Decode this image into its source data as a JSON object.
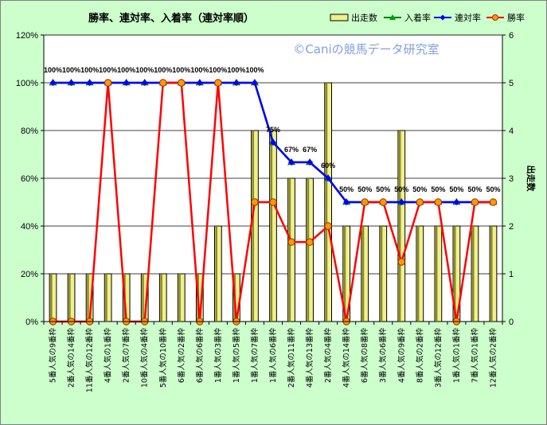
{
  "chart_data": {
    "type": "bar",
    "title": "勝率、連対率、入着率（連対率順）",
    "watermark": "©Caniの競馬データ研究室",
    "categories": [
      "5番人気の9番枠",
      "2番人気の14番枠",
      "11番人気の12番枠",
      "4番人気の1番枠",
      "2番人気の7番枠",
      "10番人気の4番枠",
      "5番人気の10番枠",
      "6番人気の2番枠",
      "6番人気の6番枠",
      "1番人気の3番枠",
      "1番人気の5番枠",
      "1番人気の7番枠",
      "1番人気の6番枠",
      "2番人気の11番枠",
      "4番人気の13番枠",
      "2番人気の4番枠",
      "4番人気の14番枠",
      "6番人気の8番枠",
      "3番人気の6番枠",
      "4番人気の9番枠",
      "8番人気の2番枠",
      "3番人気の12番枠",
      "1番人気の1番枠",
      "7番人気の1番枠",
      "12番人気の2番枠"
    ],
    "y_left": {
      "ticks": [
        "0%",
        "20%",
        "40%",
        "60%",
        "80%",
        "100%",
        "120%"
      ],
      "min": 0,
      "max": 1.2
    },
    "y_right": {
      "ticks": [
        "0",
        "1",
        "2",
        "3",
        "4",
        "5",
        "6"
      ],
      "min": 0,
      "max": 6,
      "label": "出走数"
    },
    "legend": {
      "placement": "top-right"
    },
    "grid": true,
    "series": [
      {
        "name": "出走数",
        "kind": "bar",
        "axis": "right",
        "color": "#f0f08c",
        "values": [
          1,
          1,
          1,
          1,
          1,
          1,
          1,
          1,
          1,
          2,
          1,
          4,
          4,
          3,
          3,
          5,
          2,
          2,
          2,
          4,
          2,
          2,
          2,
          2,
          2
        ]
      },
      {
        "name": "入着率",
        "kind": "line",
        "axis": "left",
        "color": "#008000",
        "values": [
          1,
          1,
          1,
          1,
          1,
          1,
          1,
          1,
          1,
          1,
          1,
          1,
          0.75,
          0.667,
          0.667,
          0.6,
          0.5,
          0.5,
          0.5,
          0.5,
          0.5,
          0.5,
          0.5,
          0.5,
          0.5
        ]
      },
      {
        "name": "連対率",
        "kind": "line",
        "axis": "left",
        "color": "#0000ff",
        "values": [
          1,
          1,
          1,
          1,
          1,
          1,
          1,
          1,
          1,
          1,
          1,
          1,
          0.75,
          0.667,
          0.667,
          0.6,
          0.5,
          0.5,
          0.5,
          0.5,
          0.5,
          0.5,
          0.5,
          0.5,
          0.5
        ]
      },
      {
        "name": "勝率",
        "kind": "line",
        "axis": "left",
        "color": "#ff0000",
        "values": [
          0,
          0,
          0,
          1,
          0,
          0,
          1,
          1,
          0,
          1,
          0,
          0.5,
          0.5,
          0.333,
          0.333,
          0.4,
          0,
          0.5,
          0.5,
          0.25,
          0.5,
          0.5,
          0,
          0.5,
          0.5
        ]
      }
    ],
    "data_labels": [
      "100%",
      "100%",
      "100%",
      "100%",
      "100%",
      "100%",
      "100%",
      "100%",
      "100%",
      "100%",
      "100%",
      "100%",
      "75%",
      "67%",
      "67%",
      "60%",
      "50%",
      "50%",
      "50%",
      "50%",
      "50%",
      "50%",
      "50%",
      "50%",
      "50%"
    ]
  }
}
